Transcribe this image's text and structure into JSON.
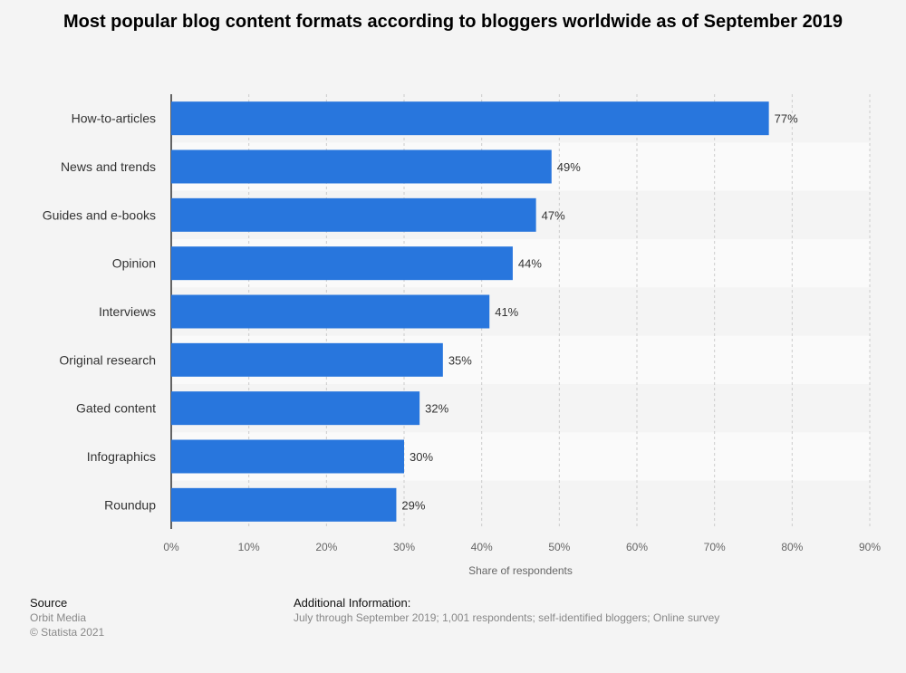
{
  "chart_data": {
    "type": "bar",
    "orientation": "horizontal",
    "title": "Most popular blog content formats according to bloggers worldwide as of September 2019",
    "xlabel": "Share of respondents",
    "ylabel": "",
    "xlim": [
      0,
      90
    ],
    "tick_labels": [
      "0%",
      "10%",
      "20%",
      "30%",
      "40%",
      "50%",
      "60%",
      "70%",
      "80%",
      "90%"
    ],
    "categories": [
      "How-to-articles",
      "News and trends",
      "Guides and e-books",
      "Opinion",
      "Interviews",
      "Original research",
      "Gated content",
      "Infographics",
      "Roundup"
    ],
    "values": [
      77,
      49,
      47,
      44,
      41,
      35,
      32,
      30,
      29
    ],
    "value_labels": [
      "77%",
      "49%",
      "47%",
      "44%",
      "41%",
      "35%",
      "32%",
      "30%",
      "29%"
    ],
    "bar_color": "#2876dd",
    "grid": true
  },
  "footer": {
    "source_heading": "Source",
    "source_name": "Orbit Media",
    "copyright": "© Statista 2021",
    "info_heading": "Additional Information:",
    "info_text": "July through September 2019; 1,001 respondents; self-identified bloggers; Online survey"
  }
}
